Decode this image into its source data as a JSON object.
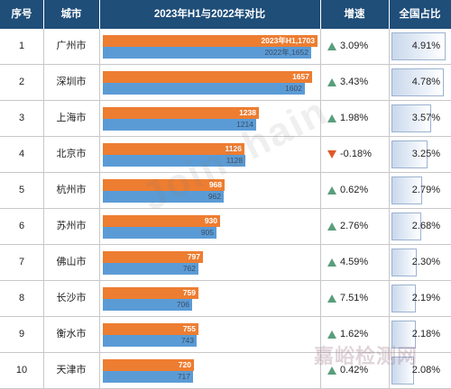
{
  "header": {
    "rank": "序号",
    "city": "城市",
    "compare": "2023年H1与2022年对比",
    "growth": "增速",
    "share": "全国占比"
  },
  "watermark": "Joinchain",
  "watermark2": "嘉峪检测网",
  "colors": {
    "bar2023": "#ed7d31",
    "bar2022": "#5b9bd5",
    "header": "#1f4e79",
    "up": "#5a9e7c",
    "down": "#e05a2a"
  },
  "chart_data": {
    "type": "table",
    "columns": [
      "序号",
      "城市",
      "2023年H1与2022年对比",
      "增速",
      "全国占比"
    ],
    "bar_max": 1703,
    "rows": [
      {
        "rank": "1",
        "city": "广州市",
        "v2023": 1703,
        "v2022": 1652,
        "label2023": "2023年H1,1703",
        "label2022": "2022年,1652",
        "growth": "3.09%",
        "direction": "up",
        "share": "4.91%",
        "share_value": 4.91
      },
      {
        "rank": "2",
        "city": "深圳市",
        "v2023": 1657,
        "v2022": 1602,
        "label2023": "1657",
        "label2022": "1602",
        "growth": "3.43%",
        "direction": "up",
        "share": "4.78%",
        "share_value": 4.78
      },
      {
        "rank": "3",
        "city": "上海市",
        "v2023": 1238,
        "v2022": 1214,
        "label2023": "1238",
        "label2022": "1214",
        "growth": "1.98%",
        "direction": "up",
        "share": "3.57%",
        "share_value": 3.57
      },
      {
        "rank": "4",
        "city": "北京市",
        "v2023": 1126,
        "v2022": 1128,
        "label2023": "1126",
        "label2022": "1128",
        "growth": "-0.18%",
        "direction": "down",
        "share": "3.25%",
        "share_value": 3.25
      },
      {
        "rank": "5",
        "city": "杭州市",
        "v2023": 968,
        "v2022": 962,
        "label2023": "968",
        "label2022": "962",
        "growth": "0.62%",
        "direction": "up",
        "share": "2.79%",
        "share_value": 2.79
      },
      {
        "rank": "6",
        "city": "苏州市",
        "v2023": 930,
        "v2022": 905,
        "label2023": "930",
        "label2022": "905",
        "growth": "2.76%",
        "direction": "up",
        "share": "2.68%",
        "share_value": 2.68
      },
      {
        "rank": "7",
        "city": "佛山市",
        "v2023": 797,
        "v2022": 762,
        "label2023": "797",
        "label2022": "762",
        "growth": "4.59%",
        "direction": "up",
        "share": "2.30%",
        "share_value": 2.3
      },
      {
        "rank": "8",
        "city": "长沙市",
        "v2023": 759,
        "v2022": 706,
        "label2023": "759",
        "label2022": "706",
        "growth": "7.51%",
        "direction": "up",
        "share": "2.19%",
        "share_value": 2.19
      },
      {
        "rank": "9",
        "city": "衡水市",
        "v2023": 755,
        "v2022": 743,
        "label2023": "755",
        "label2022": "743",
        "growth": "1.62%",
        "direction": "up",
        "share": "2.18%",
        "share_value": 2.18
      },
      {
        "rank": "10",
        "city": "天津市",
        "v2023": 720,
        "v2022": 717,
        "label2023": "720",
        "label2022": "717",
        "growth": "0.42%",
        "direction": "up",
        "share": "2.08%",
        "share_value": 2.08
      }
    ]
  }
}
